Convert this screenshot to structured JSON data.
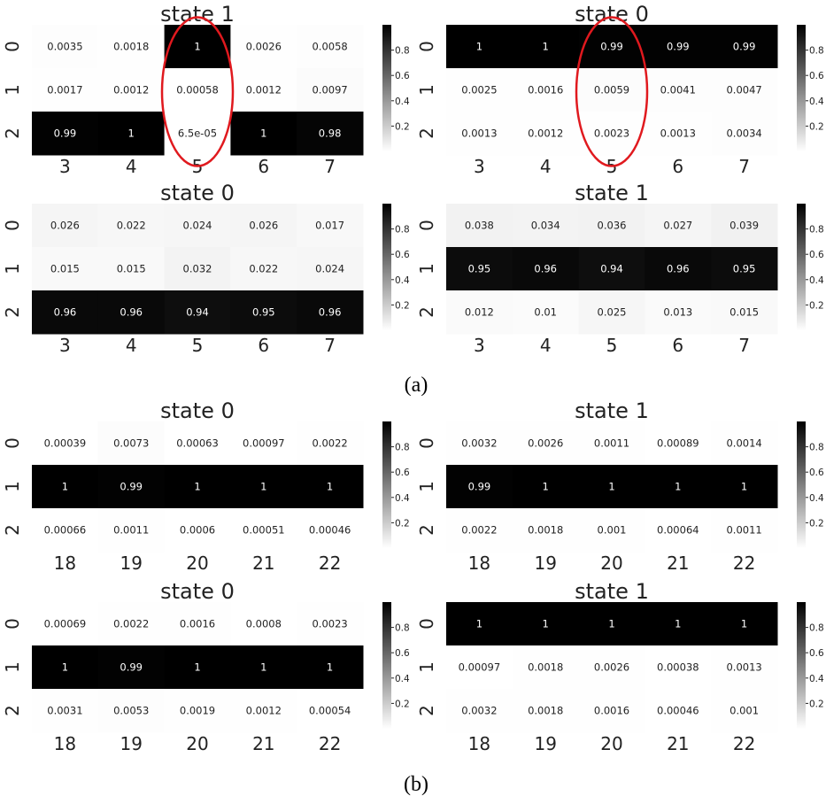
{
  "captions": [
    "(a)",
    "(b)"
  ],
  "chart_data": [
    {
      "type": "heatmap",
      "title": "state 1",
      "x": [
        "3",
        "4",
        "5",
        "6",
        "7"
      ],
      "y": [
        "0",
        "1",
        "2"
      ],
      "labels": [
        [
          "0.0035",
          "0.0018",
          "1",
          "0.0026",
          "0.0058"
        ],
        [
          "0.0017",
          "0.0012",
          "0.00058",
          "0.0012",
          "0.0097"
        ],
        [
          "0.99",
          "1",
          "6.5e-05",
          "1",
          "0.98"
        ]
      ],
      "values": [
        [
          0.0035,
          0.0018,
          1,
          0.0026,
          0.0058
        ],
        [
          0.0017,
          0.0012,
          0.00058,
          0.0012,
          0.0097
        ],
        [
          0.99,
          1,
          6.5e-05,
          1,
          0.98
        ]
      ],
      "colorbar_ticks": [
        "0.2",
        "0.4",
        "0.6",
        "0.8"
      ],
      "highlight": {
        "column": "5",
        "color": "#e0191e"
      }
    },
    {
      "type": "heatmap",
      "title": "state 0",
      "x": [
        "3",
        "4",
        "5",
        "6",
        "7"
      ],
      "y": [
        "0",
        "1",
        "2"
      ],
      "labels": [
        [
          "1",
          "1",
          "0.99",
          "0.99",
          "0.99"
        ],
        [
          "0.0025",
          "0.0016",
          "0.0059",
          "0.0041",
          "0.0047"
        ],
        [
          "0.0013",
          "0.0012",
          "0.0023",
          "0.0013",
          "0.0034"
        ]
      ],
      "values": [
        [
          1,
          1,
          0.99,
          0.99,
          0.99
        ],
        [
          0.0025,
          0.0016,
          0.0059,
          0.0041,
          0.0047
        ],
        [
          0.0013,
          0.0012,
          0.0023,
          0.0013,
          0.0034
        ]
      ],
      "colorbar_ticks": [
        "0.2",
        "0.4",
        "0.6",
        "0.8"
      ],
      "highlight": {
        "column": "5",
        "color": "#e0191e"
      }
    },
    {
      "type": "heatmap",
      "title": "state 0",
      "x": [
        "3",
        "4",
        "5",
        "6",
        "7"
      ],
      "y": [
        "0",
        "1",
        "2"
      ],
      "labels": [
        [
          "0.026",
          "0.022",
          "0.024",
          "0.026",
          "0.017"
        ],
        [
          "0.015",
          "0.015",
          "0.032",
          "0.022",
          "0.024"
        ],
        [
          "0.96",
          "0.96",
          "0.94",
          "0.95",
          "0.96"
        ]
      ],
      "values": [
        [
          0.026,
          0.022,
          0.024,
          0.026,
          0.017
        ],
        [
          0.015,
          0.015,
          0.032,
          0.022,
          0.024
        ],
        [
          0.96,
          0.96,
          0.94,
          0.95,
          0.96
        ]
      ],
      "colorbar_ticks": [
        "0.2",
        "0.4",
        "0.6",
        "0.8"
      ]
    },
    {
      "type": "heatmap",
      "title": "state 1",
      "x": [
        "3",
        "4",
        "5",
        "6",
        "7"
      ],
      "y": [
        "0",
        "1",
        "2"
      ],
      "labels": [
        [
          "0.038",
          "0.034",
          "0.036",
          "0.027",
          "0.039"
        ],
        [
          "0.95",
          "0.96",
          "0.94",
          "0.96",
          "0.95"
        ],
        [
          "0.012",
          "0.01",
          "0.025",
          "0.013",
          "0.015"
        ]
      ],
      "values": [
        [
          0.038,
          0.034,
          0.036,
          0.027,
          0.039
        ],
        [
          0.95,
          0.96,
          0.94,
          0.96,
          0.95
        ],
        [
          0.012,
          0.01,
          0.025,
          0.013,
          0.015
        ]
      ],
      "colorbar_ticks": [
        "0.2",
        "0.4",
        "0.6",
        "0.8"
      ]
    },
    {
      "type": "heatmap",
      "title": "state 0",
      "x": [
        "18",
        "19",
        "20",
        "21",
        "22"
      ],
      "y": [
        "0",
        "1",
        "2"
      ],
      "labels": [
        [
          "0.00039",
          "0.0073",
          "0.00063",
          "0.00097",
          "0.0022"
        ],
        [
          "1",
          "0.99",
          "1",
          "1",
          "1"
        ],
        [
          "0.00066",
          "0.0011",
          "0.0006",
          "0.00051",
          "0.00046"
        ]
      ],
      "values": [
        [
          0.00039,
          0.0073,
          0.00063,
          0.00097,
          0.0022
        ],
        [
          1,
          0.99,
          1,
          1,
          1
        ],
        [
          0.00066,
          0.0011,
          0.0006,
          0.00051,
          0.00046
        ]
      ],
      "colorbar_ticks": [
        "0.2",
        "0.4",
        "0.6",
        "0.8"
      ]
    },
    {
      "type": "heatmap",
      "title": "state 1",
      "x": [
        "18",
        "19",
        "20",
        "21",
        "22"
      ],
      "y": [
        "0",
        "1",
        "2"
      ],
      "labels": [
        [
          "0.0032",
          "0.0026",
          "0.0011",
          "0.00089",
          "0.0014"
        ],
        [
          "0.99",
          "1",
          "1",
          "1",
          "1"
        ],
        [
          "0.0022",
          "0.0018",
          "0.001",
          "0.00064",
          "0.0011"
        ]
      ],
      "values": [
        [
          0.0032,
          0.0026,
          0.0011,
          0.00089,
          0.0014
        ],
        [
          0.99,
          1,
          1,
          1,
          1
        ],
        [
          0.0022,
          0.0018,
          0.001,
          0.00064,
          0.0011
        ]
      ],
      "colorbar_ticks": [
        "0.2",
        "0.4",
        "0.6",
        "0.8"
      ]
    },
    {
      "type": "heatmap",
      "title": "state 0",
      "x": [
        "18",
        "19",
        "20",
        "21",
        "22"
      ],
      "y": [
        "0",
        "1",
        "2"
      ],
      "labels": [
        [
          "0.00069",
          "0.0022",
          "0.0016",
          "0.0008",
          "0.0023"
        ],
        [
          "1",
          "0.99",
          "1",
          "1",
          "1"
        ],
        [
          "0.0031",
          "0.0053",
          "0.0019",
          "0.0012",
          "0.00054"
        ]
      ],
      "values": [
        [
          0.00069,
          0.0022,
          0.0016,
          0.0008,
          0.0023
        ],
        [
          1,
          0.99,
          1,
          1,
          1
        ],
        [
          0.0031,
          0.0053,
          0.0019,
          0.0012,
          0.00054
        ]
      ],
      "colorbar_ticks": [
        "0.2",
        "0.4",
        "0.6",
        "0.8"
      ]
    },
    {
      "type": "heatmap",
      "title": "state 1",
      "x": [
        "18",
        "19",
        "20",
        "21",
        "22"
      ],
      "y": [
        "0",
        "1",
        "2"
      ],
      "labels": [
        [
          "1",
          "1",
          "1",
          "1",
          "1"
        ],
        [
          "0.00097",
          "0.0018",
          "0.0026",
          "0.00038",
          "0.0013"
        ],
        [
          "0.0032",
          "0.0018",
          "0.0016",
          "0.00046",
          "0.001"
        ]
      ],
      "values": [
        [
          1,
          1,
          1,
          1,
          1
        ],
        [
          0.00097,
          0.0018,
          0.0026,
          0.00038,
          0.0013
        ],
        [
          0.0032,
          0.0018,
          0.0016,
          0.00046,
          0.001
        ]
      ],
      "colorbar_ticks": [
        "0.2",
        "0.4",
        "0.6",
        "0.8"
      ]
    }
  ]
}
